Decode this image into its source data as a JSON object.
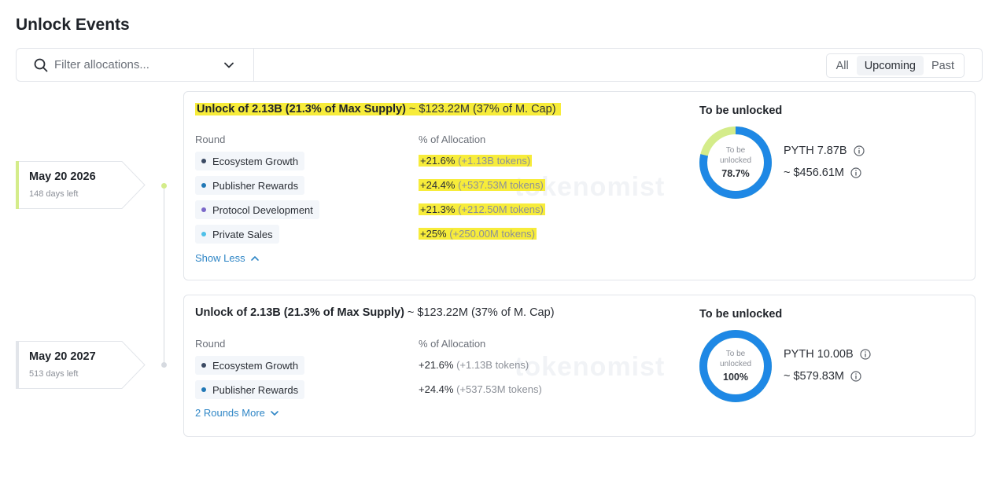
{
  "page": {
    "title": "Unlock Events"
  },
  "filter": {
    "placeholder": "Filter allocations..."
  },
  "tabs": [
    {
      "label": "All",
      "active": false
    },
    {
      "label": "Upcoming",
      "active": true
    },
    {
      "label": "Past",
      "active": false
    }
  ],
  "colors": {
    "accent_blue": "#1e88e5",
    "accent_green": "#d4ec8a",
    "highlight": "#f7ec3a",
    "link": "#2f86c6"
  },
  "events": [
    {
      "date": "May 20 2026",
      "days_left": "148 days left",
      "headline_strong": "Unlock of 2.13B (21.3% of Max Supply)",
      "headline_rest": " ~ $123.22M (37% of M. Cap)",
      "col_round": "Round",
      "col_alloc": "% of Allocation",
      "rows": [
        {
          "name": "Ecosystem Growth",
          "pct": "+21.6%",
          "tokens": " (+1.13B tokens)",
          "dot": "#3b4a63"
        },
        {
          "name": "Publisher Rewards",
          "pct": "+24.4%",
          "tokens": " (+537.53M tokens)",
          "dot": "#2178b6"
        },
        {
          "name": "Protocol Development",
          "pct": "+21.3%",
          "tokens": " (+212.50M tokens)",
          "dot": "#7b68c9"
        },
        {
          "name": "Private Sales",
          "pct": "+25%",
          "tokens": " (+250.00M tokens)",
          "dot": "#4ec0e8"
        }
      ],
      "toggle": "Show Less",
      "to_be_unlocked_title": "To be unlocked",
      "donut_label_1": "To be",
      "donut_label_2": "unlocked",
      "donut_pct": "78.7%",
      "donut_value": 0.787,
      "tokens_stat": "PYTH 7.87B",
      "usd_stat": "~ $456.61M"
    },
    {
      "date": "May 20 2027",
      "days_left": "513 days left",
      "headline_strong": "Unlock of 2.13B (21.3% of Max Supply)",
      "headline_rest": " ~ $123.22M (37% of M. Cap)",
      "col_round": "Round",
      "col_alloc": "% of Allocation",
      "rows": [
        {
          "name": "Ecosystem Growth",
          "pct": "+21.6%",
          "tokens": " (+1.13B tokens)",
          "dot": "#3b4a63"
        },
        {
          "name": "Publisher Rewards",
          "pct": "+24.4%",
          "tokens": " (+537.53M tokens)",
          "dot": "#2178b6"
        }
      ],
      "toggle": "2 Rounds More",
      "to_be_unlocked_title": "To be unlocked",
      "donut_label_1": "To be",
      "donut_label_2": "unlocked",
      "donut_pct": "100%",
      "donut_value": 1.0,
      "tokens_stat": "PYTH 10.00B",
      "usd_stat": "~ $579.83M"
    }
  ]
}
